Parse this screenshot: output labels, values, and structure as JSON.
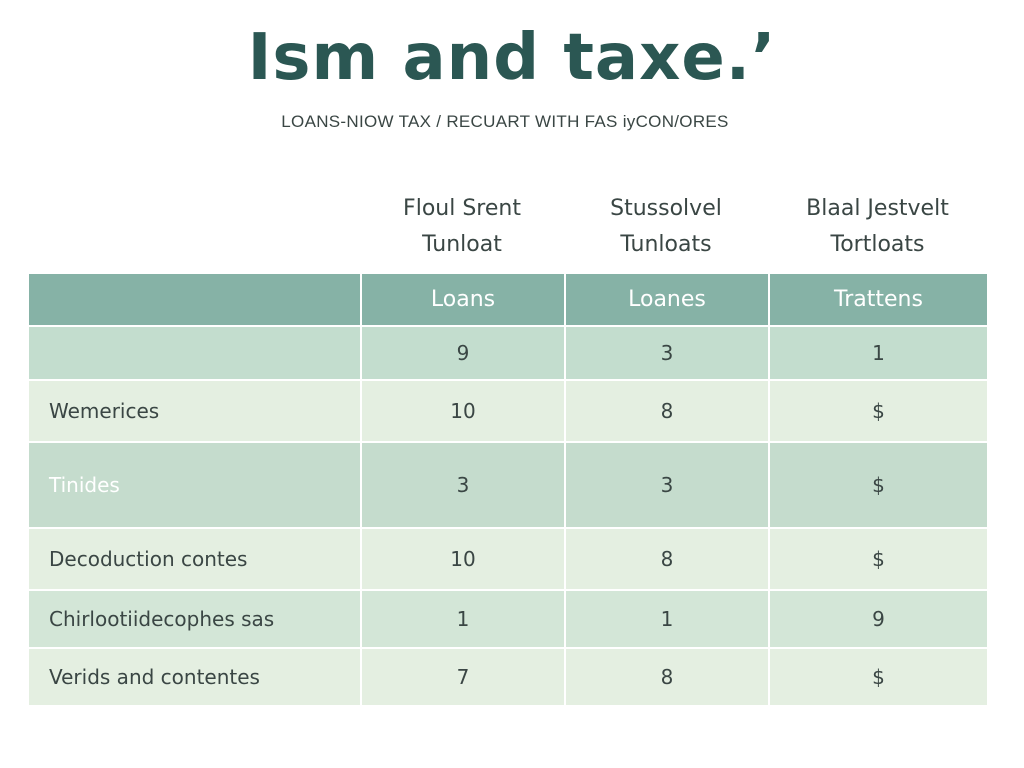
{
  "title": "Ism and taxe.’",
  "subtitle": "LOANS-NIOW TAX / RECUART WITH FAS iyCON/ORES",
  "group_headers": [
    {
      "line1": "Floul Srent",
      "line2": "Tunloat"
    },
    {
      "line1": "Stussolvel",
      "line2": "Tunloats"
    },
    {
      "line1": "Blaal Jestvelt",
      "line2": "Tortloats"
    }
  ],
  "table": {
    "columns": [
      "",
      "Loans",
      "Loanes",
      "Trattens"
    ],
    "rows": [
      {
        "label": "",
        "values": [
          "9",
          "3",
          "1"
        ]
      },
      {
        "label": "Wemerices",
        "values": [
          "10",
          "8",
          "$"
        ]
      },
      {
        "label": "Tinides",
        "values": [
          "3",
          "3",
          "$"
        ]
      },
      {
        "label": "Decoduction contes",
        "values": [
          "10",
          "8",
          "$"
        ]
      },
      {
        "label": "Chirlootiidecophes sas",
        "values": [
          "1",
          "1",
          "9"
        ]
      },
      {
        "label": "Verids and contentes",
        "values": [
          "7",
          "8",
          "$"
        ]
      }
    ]
  },
  "colors": {
    "title": "#2b5753",
    "header_bg": "#86b2a6",
    "row_dark": "#c3ddce",
    "row_light": "#e4efe1"
  }
}
